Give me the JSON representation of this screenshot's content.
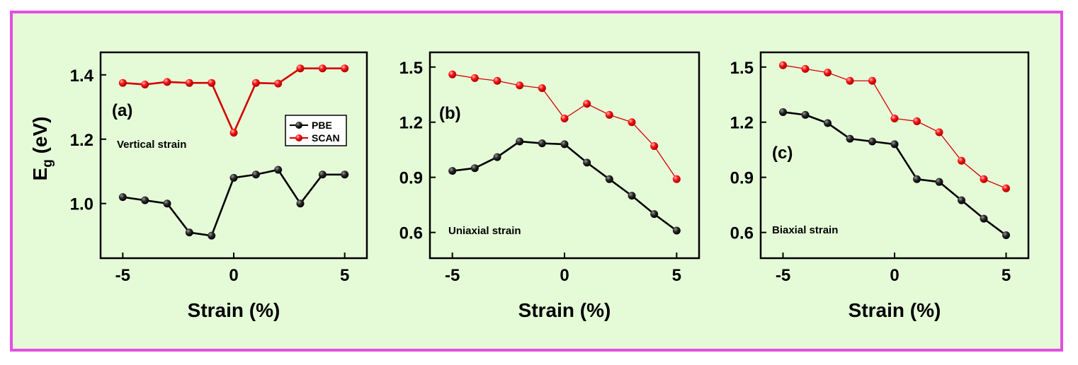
{
  "figure": {
    "ylabel_main": "E",
    "ylabel_sub": "g",
    "ylabel_unit": " (eV)"
  },
  "colors": {
    "background": "#e5fbd8",
    "border": "#e34fe0",
    "pbe": "#000000",
    "scan": "#d40000"
  },
  "chart_data": [
    {
      "type": "line",
      "panel": "(a)",
      "annotation": "Vertical strain",
      "xlabel": "Strain (%)",
      "ylabel": "E_g (eV)",
      "xlim": [
        -6,
        6
      ],
      "ylim": [
        0.83,
        1.47
      ],
      "xticks": [
        -5,
        0,
        5
      ],
      "xticklabels": [
        "-5",
        "0",
        "5"
      ],
      "yticks": [
        1.0,
        1.2,
        1.4
      ],
      "yticklabels": [
        "1.0",
        "1.2",
        "1.4"
      ],
      "x": [
        -5,
        -4,
        -3,
        -2,
        -1,
        0,
        1,
        2,
        3,
        4,
        5
      ],
      "legend": [
        "PBE",
        "SCAN"
      ],
      "series": [
        {
          "name": "PBE",
          "values": [
            1.02,
            1.01,
            1.0,
            0.91,
            0.9,
            1.08,
            1.09,
            1.105,
            1.0,
            1.09,
            1.09
          ]
        },
        {
          "name": "SCAN",
          "values": [
            1.375,
            1.37,
            1.378,
            1.375,
            1.375,
            1.22,
            1.375,
            1.373,
            1.42,
            1.42,
            1.42
          ]
        }
      ]
    },
    {
      "type": "line",
      "panel": "(b)",
      "annotation": "Uniaxial strain",
      "xlabel": "Strain (%)",
      "ylabel": "",
      "xlim": [
        -6,
        6
      ],
      "ylim": [
        0.46,
        1.58
      ],
      "xticks": [
        -5,
        0,
        5
      ],
      "xticklabels": [
        "-5",
        "0",
        "5"
      ],
      "yticks": [
        0.6,
        0.9,
        1.2,
        1.5
      ],
      "yticklabels": [
        "0.6",
        "0.9",
        "1.2",
        "1.5"
      ],
      "x": [
        -5,
        -4,
        -3,
        -2,
        -1,
        0,
        1,
        2,
        3,
        4,
        5
      ],
      "series": [
        {
          "name": "PBE",
          "values": [
            0.935,
            0.95,
            1.01,
            1.095,
            1.085,
            1.08,
            0.98,
            0.89,
            0.8,
            0.7,
            0.61
          ]
        },
        {
          "name": "SCAN",
          "values": [
            1.46,
            1.44,
            1.425,
            1.4,
            1.385,
            1.22,
            1.3,
            1.24,
            1.2,
            1.07,
            0.89
          ]
        }
      ]
    },
    {
      "type": "line",
      "panel": "(c)",
      "annotation": "Biaxial strain",
      "xlabel": "Strain (%)",
      "ylabel": "",
      "xlim": [
        -6,
        6
      ],
      "ylim": [
        0.46,
        1.58
      ],
      "xticks": [
        -5,
        0,
        5
      ],
      "xticklabels": [
        "-5",
        "0",
        "5"
      ],
      "yticks": [
        0.6,
        0.9,
        1.2,
        1.5
      ],
      "yticklabels": [
        "0.6",
        "0.9",
        "1.2",
        "1.5"
      ],
      "x": [
        -5,
        -4,
        -3,
        -2,
        -1,
        0,
        1,
        2,
        3,
        4,
        5
      ],
      "series": [
        {
          "name": "PBE",
          "values": [
            1.255,
            1.24,
            1.195,
            1.11,
            1.095,
            1.08,
            0.89,
            0.875,
            0.775,
            0.675,
            0.585
          ]
        },
        {
          "name": "SCAN",
          "values": [
            1.51,
            1.49,
            1.47,
            1.425,
            1.425,
            1.22,
            1.205,
            1.145,
            0.99,
            0.89,
            0.84
          ]
        }
      ]
    }
  ]
}
